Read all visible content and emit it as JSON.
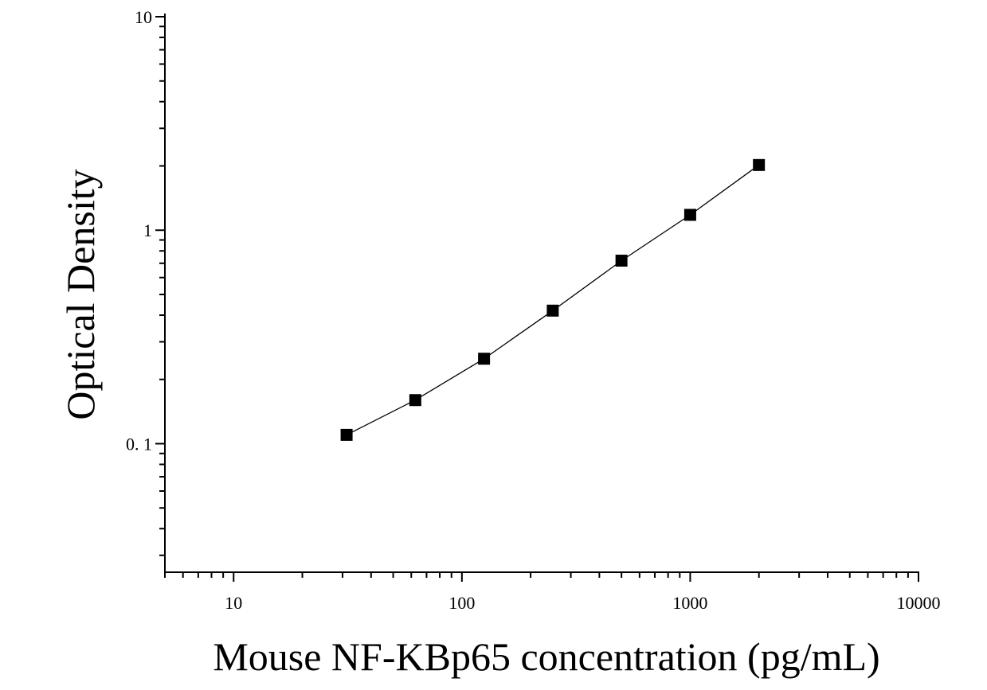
{
  "chart_data": {
    "type": "scatter",
    "title": "",
    "xlabel": "Mouse NF-KBp65 concentration (pg/mL)",
    "ylabel": "Optical Density",
    "x_scale": "log",
    "y_scale": "log",
    "xlim": [
      5,
      10000
    ],
    "ylim": [
      0.025,
      10
    ],
    "x_ticks": [
      10,
      100,
      1000,
      10000
    ],
    "x_tick_labels": [
      "10",
      "100",
      "1000",
      "10000"
    ],
    "y_ticks": [
      0.1,
      1,
      10
    ],
    "y_tick_labels": [
      "0. 1",
      "1",
      "10"
    ],
    "grid": false,
    "legend": "none",
    "series": [
      {
        "x": [
          31.25,
          62.5,
          125,
          250,
          500,
          1000,
          2000
        ],
        "y": [
          0.11,
          0.16,
          0.25,
          0.42,
          0.72,
          1.18,
          2.02
        ],
        "marker": "square",
        "color": "#000000",
        "fit_line": true
      }
    ]
  }
}
